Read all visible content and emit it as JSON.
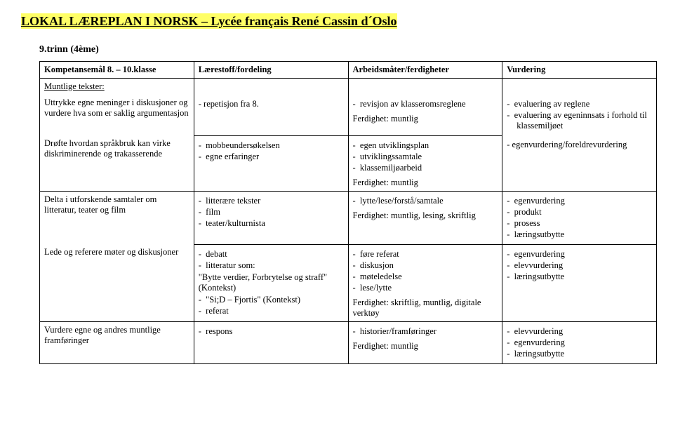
{
  "doc": {
    "title": "LOKAL LÆREPLAN I NORSK – Lycée français René Cassin d´Oslo",
    "subtitle": "9.trinn (4ème)"
  },
  "headers": {
    "c0": "Kompetansemål 8. – 10.klasse",
    "c1": "Lærestoff/fordeling",
    "c2": "Arbeidsmåter/ferdigheter",
    "c3": "Vurdering"
  },
  "section": "Muntlige tekster:",
  "rows": [
    {
      "c0_paras": [
        "Uttrykke egne meninger i diskusjoner og vurdere hva som er saklig argumentasjon"
      ],
      "c1_text": "- repetisjon fra 8.",
      "c2_items": [
        "revisjon av klasseromsreglene"
      ],
      "c2_ferd": "Ferdighet: muntlig",
      "c3_items": [
        "evaluering av reglene",
        "evaluering av egeninnsats i forhold til klassemiljøet"
      ]
    },
    {
      "c0_paras": [
        "Drøfte hvordan språkbruk kan virke diskriminerende og trakasserende"
      ],
      "c1_items": [
        "mobbeundersøkelsen",
        "egne erfaringer"
      ],
      "c2_items": [
        "egen utviklingsplan",
        "utviklingssamtale",
        "klassemiljøarbeid"
      ],
      "c2_ferd": "Ferdighet: muntlig",
      "c3_text": "- egenvurdering/foreldrevurdering"
    },
    {
      "c0_paras": [
        "Delta i utforskende samtaler om litteratur, teater og film"
      ],
      "c1_items": [
        "litterære tekster",
        "film",
        "teater/kulturnista"
      ],
      "c2_items": [
        "lytte/lese/forstå/samtale"
      ],
      "c2_ferd": "Ferdighet: muntlig, lesing, skriftlig",
      "c3_items": [
        "egenvurdering",
        "produkt",
        "prosess",
        "læringsutbytte"
      ]
    },
    {
      "c0_paras": [
        "Lede og referere møter og diskusjoner"
      ],
      "c1_items": [
        "debatt",
        "litteratur som:"
      ],
      "c1_extra1": "\"Bytte verdier, Forbrytelse og straff\" (Kontekst)",
      "c1_extra2": "\"Si;D – Fjortis\" (Kontekst)",
      "c1_extra3": "referat",
      "c2_items": [
        "føre referat",
        "diskusjon",
        "møteledelse",
        "lese/lytte"
      ],
      "c2_ferd": "Ferdighet: skriftlig, muntlig, digitale verktøy",
      "c3_items": [
        "egenvurdering",
        "elevvurdering",
        "læringsutbytte"
      ]
    },
    {
      "c0_paras": [
        "Vurdere egne og andres muntlige framføringer"
      ],
      "c1_items": [
        "respons"
      ],
      "c2_items": [
        "historier/framføringer"
      ],
      "c2_ferd": "Ferdighet: muntlig",
      "c3_items": [
        "elevvurdering",
        "egenvurdering",
        "læringsutbytte"
      ]
    }
  ]
}
